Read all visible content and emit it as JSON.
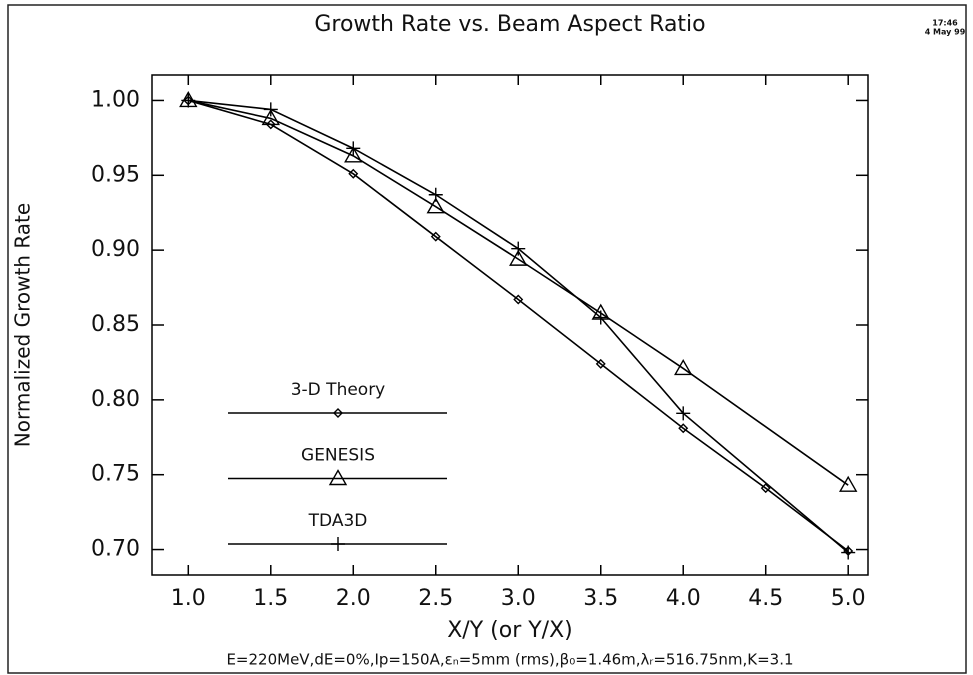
{
  "chart_data": {
    "type": "line",
    "title": "Growth Rate  vs. Beam Aspect Ratio",
    "x_label": "X/Y (or Y/X)",
    "y_label": "Normalized Growth Rate",
    "annotations": [
      "17:46",
      "4 May 99",
      "E=220MeV,dE=0%,Ip=150A,εₙ=5mm  (rms),β₀=1.46m,λᵣ=516.75nm,K=3.1"
    ],
    "xlim": [
      0.78,
      5.12
    ],
    "ylim": [
      0.683,
      1.017
    ],
    "xticks": [
      {
        "value": 1,
        "label": "1.0"
      },
      {
        "value": 1.5,
        "label": "1.5"
      },
      {
        "value": 2,
        "label": "2.0"
      },
      {
        "value": 2.5,
        "label": "2.5"
      },
      {
        "value": 3,
        "label": "3.0"
      },
      {
        "value": 3.5,
        "label": "3.5"
      },
      {
        "value": 4,
        "label": "4.0"
      },
      {
        "value": 4.5,
        "label": "4.5"
      },
      {
        "value": 5,
        "label": "5.0"
      }
    ],
    "yticks": [
      {
        "value": 0.7,
        "label": "0.70"
      },
      {
        "value": 0.75,
        "label": "0.75"
      },
      {
        "value": 0.8,
        "label": "0.80"
      },
      {
        "value": 0.85,
        "label": "0.85"
      },
      {
        "value": 0.9,
        "label": "0.90"
      },
      {
        "value": 0.95,
        "label": "0.95"
      },
      {
        "value": 1,
        "label": "1.00"
      }
    ],
    "grid": false,
    "legend": "lower-left",
    "series": [
      {
        "name": "3-D Theory",
        "color": "#000000",
        "marker": "diamond",
        "x": [
          1,
          1.5,
          2,
          2.5,
          3,
          3.5,
          4,
          4.5,
          5
        ],
        "values": [
          1.0,
          0.984,
          0.951,
          0.909,
          0.867,
          0.824,
          0.781,
          0.741,
          0.699
        ]
      },
      {
        "name": "GENESIS",
        "color": "#000000",
        "marker": "triangle",
        "x": [
          1,
          1.5,
          2,
          2.5,
          3,
          3.5,
          4,
          5
        ],
        "values": [
          1.0,
          0.988,
          0.963,
          0.929,
          0.894,
          0.858,
          0.821,
          0.743
        ]
      },
      {
        "name": "TDA3D",
        "color": "#000000",
        "marker": "plus",
        "x": [
          1,
          1.5,
          2,
          2.5,
          3,
          3.5,
          4,
          5
        ],
        "values": [
          1.0,
          0.994,
          0.968,
          0.937,
          0.901,
          0.855,
          0.791,
          0.698
        ]
      }
    ]
  }
}
